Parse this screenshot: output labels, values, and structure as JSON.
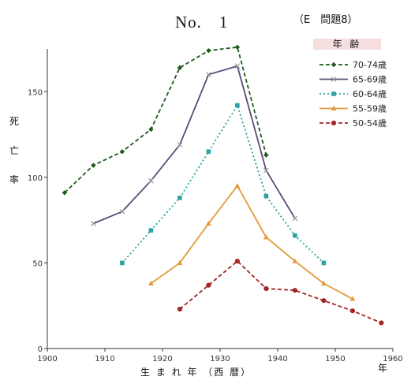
{
  "title": "No.　1",
  "subtitle": "（E　問題8）",
  "ylabel_chars": [
    "死",
    "亡",
    "率"
  ],
  "xlabel": "生 ま れ 年 （西 暦）",
  "x_unit": "年",
  "legend_title": "年 齢",
  "chart_data": {
    "type": "line",
    "title": "No.　1",
    "xlabel": "生 ま れ 年 （西 暦）",
    "ylabel": "死亡率",
    "xlim": [
      1900,
      1960
    ],
    "ylim": [
      0,
      175
    ],
    "xticks": [
      1900,
      1910,
      1920,
      1930,
      1940,
      1950,
      1960
    ],
    "yticks": [
      0,
      50,
      100,
      150
    ],
    "grid": false,
    "legend_position": "top-right",
    "series": [
      {
        "name": "70-74歳",
        "color": "#1f5a1f",
        "dash": "dashed",
        "marker": "diamond",
        "x": [
          1903,
          1908,
          1913,
          1918,
          1923,
          1928,
          1933,
          1938
        ],
        "y": [
          91,
          107,
          115,
          128,
          164,
          174,
          176,
          113
        ]
      },
      {
        "name": "65-69歳",
        "color": "#5a4a78",
        "dash": "solid",
        "marker": "x",
        "x": [
          1908,
          1913,
          1918,
          1923,
          1928,
          1933,
          1938,
          1943
        ],
        "y": [
          73,
          80,
          98,
          119,
          160,
          165,
          104,
          76
        ]
      },
      {
        "name": "60-64歳",
        "color": "#2ba3a3",
        "dash": "dotted",
        "marker": "square",
        "x": [
          1913,
          1918,
          1923,
          1928,
          1933,
          1938,
          1943,
          1948
        ],
        "y": [
          50,
          69,
          88,
          115,
          142,
          89,
          66,
          50
        ]
      },
      {
        "name": "55-59歳",
        "color": "#e39a3a",
        "dash": "solid",
        "marker": "triangle",
        "x": [
          1918,
          1923,
          1928,
          1933,
          1938,
          1943,
          1948,
          1953
        ],
        "y": [
          38,
          50,
          73,
          95,
          65,
          51,
          38,
          29
        ]
      },
      {
        "name": "50-54歳",
        "color": "#a52525",
        "dash": "dashed",
        "marker": "circle",
        "x": [
          1923,
          1928,
          1933,
          1938,
          1943,
          1948,
          1953,
          1958
        ],
        "y": [
          23,
          37,
          51,
          35,
          34,
          28,
          22,
          15
        ]
      }
    ]
  }
}
